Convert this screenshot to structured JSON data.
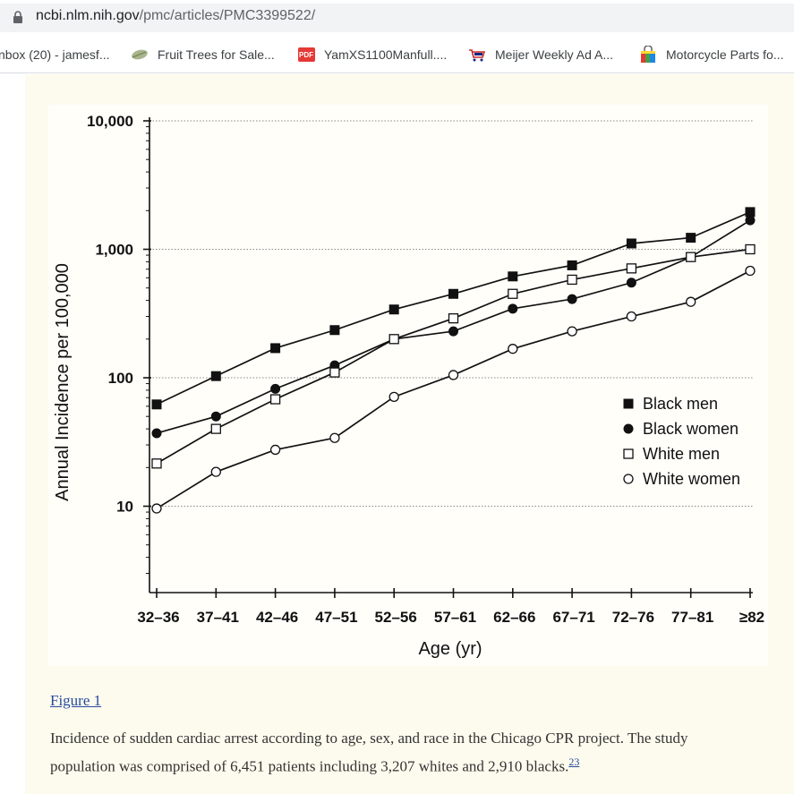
{
  "browser": {
    "url_domain": "ncbi.nlm.nih.gov",
    "url_path": "/pmc/articles/PMC3399522/",
    "bookmarks": [
      {
        "label": "nbox (20) - jamesf...",
        "icon": "mail-icon"
      },
      {
        "label": "Fruit Trees for Sale...",
        "icon": "leaf-icon"
      },
      {
        "label": "YamXS1100Manfull....",
        "icon": "pdf-icon",
        "badge": "PDF"
      },
      {
        "label": "Meijer Weekly Ad A...",
        "icon": "cart-icon"
      },
      {
        "label": "Motorcycle Parts fo...",
        "icon": "shopping-bag-icon"
      }
    ]
  },
  "figure": {
    "link_label": "Figure 1",
    "caption": "Incidence of sudden cardiac arrest according to age, sex, and race in the Chicago CPR project. The study population was comprised of 6,451 patients including 3,207 whites and 2,910 blacks.",
    "ref": "23"
  },
  "chart_data": {
    "type": "line",
    "xlabel": "Age (yr)",
    "ylabel": "Annual Incidence per 100,000",
    "yscale": "log",
    "ylim": [
      3,
      10000
    ],
    "ytick_labels": [
      "10,000",
      "1,000",
      "100",
      "10"
    ],
    "ytick_values": [
      10000,
      1000,
      100,
      10
    ],
    "categories": [
      "32–36",
      "37–41",
      "42–46",
      "47–51",
      "52–56",
      "57–61",
      "62–66",
      "67–71",
      "72–76",
      "77–81",
      "≥82"
    ],
    "grid": "horizontal dotted at 10, 100, 1,000, 10,000",
    "legend_position": "right",
    "series": [
      {
        "name": "Black men",
        "marker": "filled-square",
        "values": [
          62,
          103,
          170,
          235,
          340,
          450,
          615,
          750,
          1110,
          1230,
          1950
        ]
      },
      {
        "name": "Black women",
        "marker": "filled-circle",
        "values": [
          37,
          50,
          82,
          125,
          200,
          230,
          345,
          410,
          550,
          870,
          1680
        ]
      },
      {
        "name": "White men",
        "marker": "open-square",
        "values": [
          21.5,
          40,
          68,
          110,
          200,
          290,
          450,
          580,
          710,
          870,
          1000
        ]
      },
      {
        "name": "White women",
        "marker": "open-circle",
        "values": [
          9.6,
          18.5,
          27.5,
          34,
          71,
          105,
          168,
          230,
          300,
          390,
          680
        ]
      }
    ]
  }
}
